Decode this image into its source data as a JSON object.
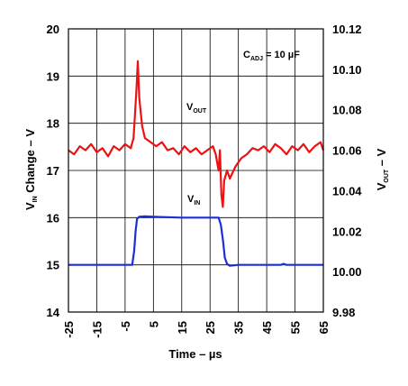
{
  "chart_data": {
    "type": "line",
    "x": {
      "label": "Time – µs",
      "range": [
        -25,
        65
      ],
      "ticks": [
        -25,
        -15,
        -5,
        5,
        15,
        25,
        35,
        45,
        55,
        65
      ],
      "tick_labels": [
        "-25",
        "-15",
        "-5",
        "5",
        "15",
        "25",
        "35",
        "45",
        "55",
        "65"
      ],
      "grid_step": 10
    },
    "y_left": {
      "label_main": "V",
      "label_sub": "IN",
      "label_rest": " Change – V",
      "range": [
        14,
        20
      ],
      "ticks": [
        14,
        15,
        16,
        17,
        18,
        19,
        20
      ],
      "tick_labels": [
        "14",
        "15",
        "16",
        "17",
        "18",
        "19",
        "20"
      ]
    },
    "y_right": {
      "label_main": "V",
      "label_sub": "OUT",
      "label_rest": " – V",
      "range": [
        9.98,
        10.12
      ],
      "ticks": [
        9.98,
        10.0,
        10.02,
        10.04,
        10.06,
        10.08,
        10.1,
        10.12
      ],
      "tick_labels": [
        "9.98",
        "10.00",
        "10.02",
        "10.04",
        "10.06",
        "10.08",
        "10.10",
        "10.12"
      ]
    },
    "grid": true,
    "annotation": {
      "main": "C",
      "sub": "ADJ",
      "rest": " = 10 µF"
    },
    "series": [
      {
        "name_main": "V",
        "name_sub": "IN",
        "axis": "left",
        "color": "#1a2fd6",
        "points": [
          [
            -25,
            15.0
          ],
          [
            -2.5,
            15.0
          ],
          [
            -1.8,
            15.3
          ],
          [
            -1.3,
            15.7
          ],
          [
            -0.8,
            15.97
          ],
          [
            0,
            16.02
          ],
          [
            2,
            16.03
          ],
          [
            5,
            16.02
          ],
          [
            15,
            16.0
          ],
          [
            28,
            16.0
          ],
          [
            28.8,
            15.85
          ],
          [
            29.6,
            15.5
          ],
          [
            30.2,
            15.15
          ],
          [
            31,
            15.02
          ],
          [
            32,
            14.98
          ],
          [
            35,
            15.0
          ],
          [
            50,
            15.0
          ],
          [
            51,
            15.02
          ],
          [
            52,
            15.0
          ],
          [
            65,
            15.0
          ]
        ]
      },
      {
        "name_main": "V",
        "name_sub": "OUT",
        "axis": "right",
        "color": "#ee1111",
        "points": [
          [
            -25,
            10.06
          ],
          [
            -23,
            10.058
          ],
          [
            -21,
            10.062
          ],
          [
            -19,
            10.06
          ],
          [
            -17,
            10.063
          ],
          [
            -15,
            10.059
          ],
          [
            -13,
            10.061
          ],
          [
            -11,
            10.057
          ],
          [
            -9,
            10.062
          ],
          [
            -7,
            10.06
          ],
          [
            -5,
            10.063
          ],
          [
            -3,
            10.061
          ],
          [
            -2,
            10.066
          ],
          [
            -1,
            10.09
          ],
          [
            -0.5,
            10.104
          ],
          [
            0,
            10.086
          ],
          [
            1,
            10.072
          ],
          [
            2,
            10.066
          ],
          [
            4,
            10.064
          ],
          [
            6,
            10.062
          ],
          [
            8,
            10.064
          ],
          [
            10,
            10.06
          ],
          [
            12,
            10.061
          ],
          [
            14,
            10.058
          ],
          [
            16,
            10.062
          ],
          [
            18,
            10.059
          ],
          [
            20,
            10.061
          ],
          [
            22,
            10.058
          ],
          [
            24,
            10.06
          ],
          [
            26,
            10.062
          ],
          [
            27,
            10.058
          ],
          [
            28,
            10.05
          ],
          [
            28.5,
            10.06
          ],
          [
            29,
            10.038
          ],
          [
            29.5,
            10.032
          ],
          [
            30,
            10.045
          ],
          [
            31,
            10.05
          ],
          [
            32,
            10.046
          ],
          [
            34,
            10.052
          ],
          [
            36,
            10.056
          ],
          [
            38,
            10.058
          ],
          [
            40,
            10.061
          ],
          [
            42,
            10.06
          ],
          [
            44,
            10.062
          ],
          [
            46,
            10.059
          ],
          [
            48,
            10.063
          ],
          [
            50,
            10.061
          ],
          [
            52,
            10.058
          ],
          [
            54,
            10.062
          ],
          [
            56,
            10.06
          ],
          [
            58,
            10.063
          ],
          [
            60,
            10.059
          ],
          [
            62,
            10.062
          ],
          [
            64,
            10.064
          ],
          [
            65,
            10.06
          ]
        ]
      }
    ]
  }
}
